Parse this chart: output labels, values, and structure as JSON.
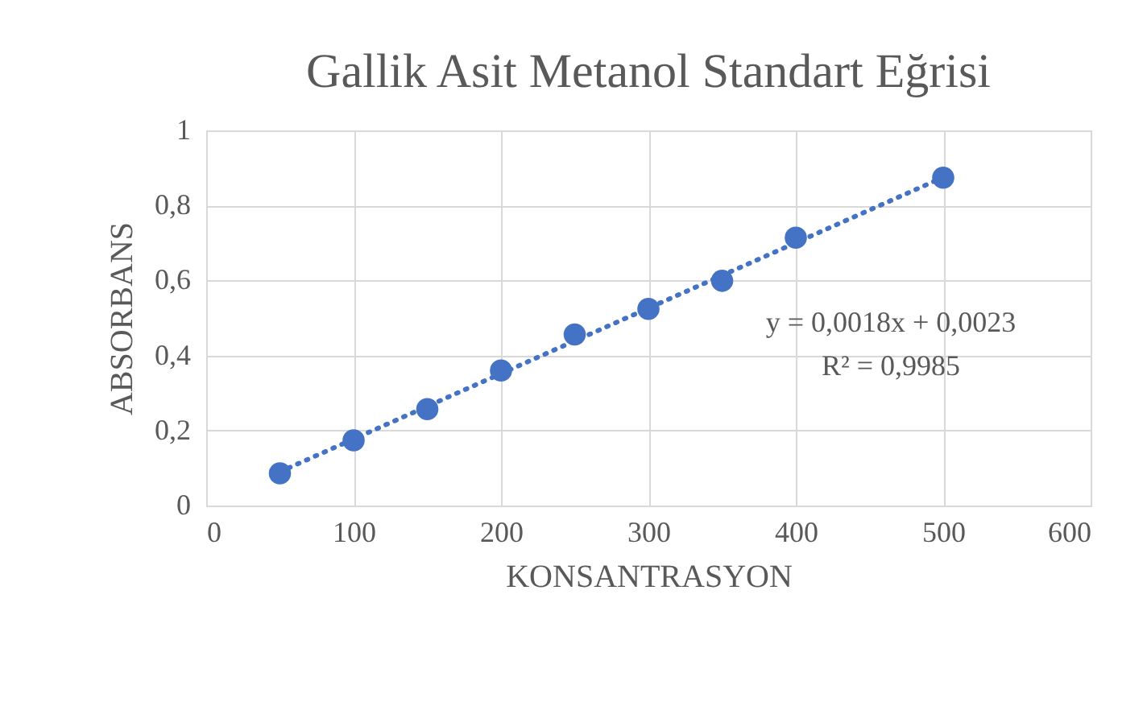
{
  "chart_data": {
    "type": "scatter",
    "title": "Gallik Asit Metanol Standart Eğrisi",
    "xlabel": "KONSANTRASYON",
    "ylabel": "ABSORBANS",
    "x": [
      50,
      100,
      150,
      200,
      250,
      300,
      350,
      400,
      500
    ],
    "series": [
      {
        "color": "#4472c4",
        "marker": "circle",
        "values": [
          0.086,
          0.174,
          0.257,
          0.36,
          0.456,
          0.524,
          0.599,
          0.714,
          0.874
        ]
      },
      {
        "type": "line",
        "color": "#4472c4",
        "line_style": "dotted",
        "marker": "none",
        "x": [
          50,
          500
        ],
        "values": [
          0.09,
          0.875
        ]
      }
    ],
    "annotations": [
      "y = 0,0018x + 0,0023",
      "R² = 0,9985"
    ],
    "xlim": [
      0,
      600
    ],
    "xticks": [
      0,
      100,
      200,
      300,
      400,
      500,
      600
    ],
    "ylim": [
      0,
      1
    ],
    "yticks": [
      {
        "value": 0,
        "label": "0"
      },
      {
        "value": 0.2,
        "label": "0,2"
      },
      {
        "value": 0.4,
        "label": "0,4"
      },
      {
        "value": 0.6,
        "label": "0,6"
      },
      {
        "value": 0.8,
        "label": "0,8"
      },
      {
        "value": 1,
        "label": "1"
      }
    ],
    "grid": true,
    "legend": false
  }
}
